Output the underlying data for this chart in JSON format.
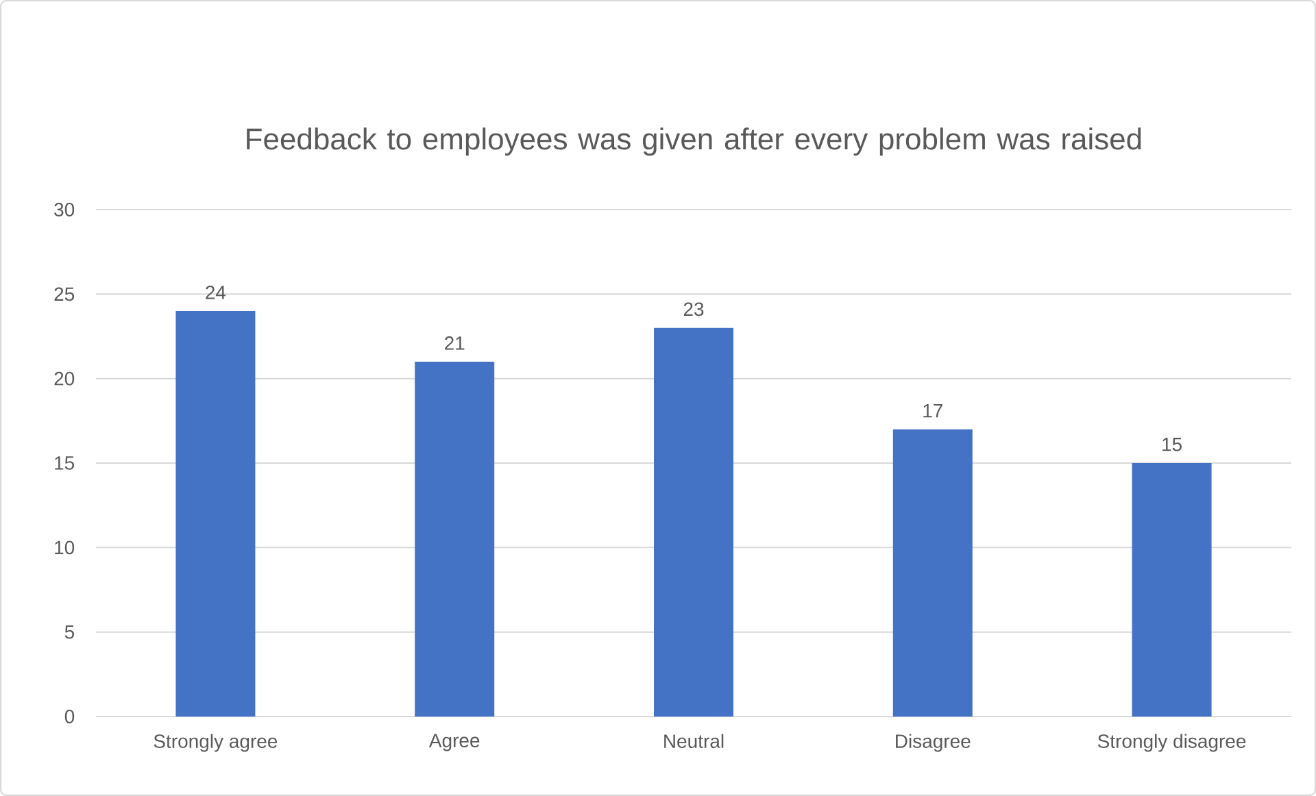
{
  "chart_data": {
    "type": "bar",
    "title": "Feedback to employees was given after every problem was raised",
    "categories": [
      "Strongly agree",
      "Agree",
      "Neutral",
      "Disagree",
      "Strongly disagree"
    ],
    "values": [
      24,
      21,
      23,
      17,
      15
    ],
    "color": "#4472c4",
    "ylim": [
      0,
      30
    ],
    "yticks": [
      0,
      5,
      10,
      15,
      20,
      25,
      30
    ],
    "grid": "y",
    "data_labels": true
  }
}
